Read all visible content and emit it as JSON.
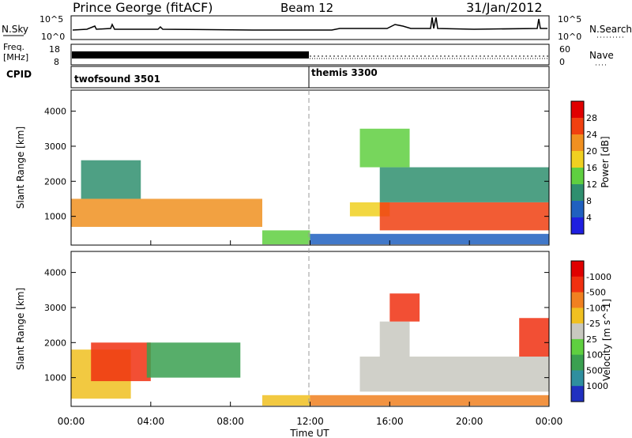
{
  "header": {
    "station": "Prince George (fitACF)",
    "beam": "Beam 12",
    "date": "31/Jan/2012"
  },
  "top_panels": {
    "nsky_label": "N.Sky",
    "nsky_ticks": [
      "10^5",
      "10^0"
    ],
    "nsearch_label": "N.Search",
    "nsearch_ticks": [
      "10^5",
      "10^0"
    ],
    "freq_label_line1": "Freq.",
    "freq_label_line2": "[MHz]",
    "freq_ticks": [
      "18",
      "8"
    ],
    "nave_label": "Nave",
    "nave_ticks": [
      "60",
      "0"
    ],
    "cpid_label": "CPID",
    "cpid_segments": [
      {
        "name": "twofsound",
        "id": "3501"
      },
      {
        "name": "themis",
        "id": "3300"
      }
    ]
  },
  "chart_data": [
    {
      "type": "heatmap",
      "title": "",
      "ylabel": "Slant Range [km]",
      "ylim": [
        180,
        4600
      ],
      "y_ticks": [
        "1000",
        "2000",
        "3000",
        "4000"
      ],
      "colorbar_label": "Power [dB]",
      "colorbar_ticks": [
        "4",
        "8",
        "12",
        "16",
        "20",
        "24",
        "28"
      ],
      "colorbar_colors": [
        "#1f1fe0",
        "#2060c0",
        "#2f8f6f",
        "#5fcf40",
        "#f0d020",
        "#f09020",
        "#f04010",
        "#e00000"
      ],
      "bands": [
        {
          "x": [
            0.0,
            9.6
          ],
          "y": [
            700,
            1500
          ],
          "value": 20
        },
        {
          "x": [
            0.5,
            3.5
          ],
          "y": [
            1500,
            2600
          ],
          "value": 8
        },
        {
          "x": [
            9.6,
            12.0
          ],
          "y": [
            200,
            600
          ],
          "value": 12
        },
        {
          "x": [
            12.0,
            24.0
          ],
          "y": [
            200,
            500
          ],
          "value": 4
        },
        {
          "x": [
            14.0,
            16.0
          ],
          "y": [
            1000,
            1400
          ],
          "value": 16
        },
        {
          "x": [
            15.5,
            24.0
          ],
          "y": [
            600,
            1400
          ],
          "value": 24
        },
        {
          "x": [
            15.5,
            24.0
          ],
          "y": [
            1400,
            2400
          ],
          "value": 8
        },
        {
          "x": [
            14.5,
            17.0
          ],
          "y": [
            2400,
            3500
          ],
          "value": 12
        }
      ]
    },
    {
      "type": "heatmap",
      "title": "",
      "xlabel": "Time UT",
      "ylabel": "Slant Range [km]",
      "x_ticks": [
        "00:00",
        "04:00",
        "08:00",
        "12:00",
        "16:00",
        "20:00",
        "00:00"
      ],
      "xlim": [
        0,
        24
      ],
      "ylim": [
        180,
        4600
      ],
      "y_ticks": [
        "1000",
        "2000",
        "3000",
        "4000"
      ],
      "colorbar_label": "Velocity [m s^-1]",
      "colorbar_ticks": [
        "1000",
        "500",
        "100",
        "25",
        "-25",
        "-100",
        "-500",
        "-1000"
      ],
      "colorbar_colors": [
        "#2030c0",
        "#2f8f9f",
        "#3aa050",
        "#5fcf40",
        "#c8c8c0",
        "#f0c020",
        "#f08020",
        "#f03010",
        "#e00000"
      ],
      "bands": [
        {
          "x": [
            0.0,
            3.0
          ],
          "y": [
            400,
            1800
          ],
          "value": -25
        },
        {
          "x": [
            1.0,
            4.0
          ],
          "y": [
            900,
            2000
          ],
          "value": -500
        },
        {
          "x": [
            3.8,
            8.5
          ],
          "y": [
            1000,
            2000
          ],
          "value": 500
        },
        {
          "x": [
            9.6,
            12.0
          ],
          "y": [
            200,
            500
          ],
          "value": -25
        },
        {
          "x": [
            12.0,
            24.0
          ],
          "y": [
            200,
            500
          ],
          "value": -100
        },
        {
          "x": [
            14.5,
            24.0
          ],
          "y": [
            600,
            1600
          ],
          "value": 0
        },
        {
          "x": [
            15.5,
            17.0
          ],
          "y": [
            1600,
            2600
          ],
          "value": 0
        },
        {
          "x": [
            16.0,
            17.5
          ],
          "y": [
            2600,
            3400
          ],
          "value": -500
        },
        {
          "x": [
            22.5,
            24.0
          ],
          "y": [
            1600,
            2700
          ],
          "value": -500
        }
      ]
    }
  ]
}
